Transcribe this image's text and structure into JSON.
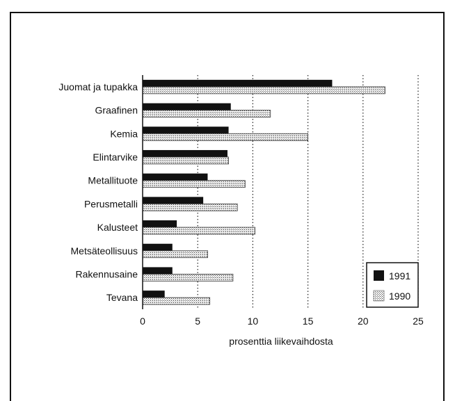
{
  "chart_data": {
    "type": "bar",
    "orientation": "horizontal",
    "categories": [
      "Juomat ja tupakka",
      "Graafinen",
      "Kemia",
      "Elintarvike",
      "Metallituote",
      "Perusmetalli",
      "Kalusteet",
      "Metsäteollisuus",
      "Rakennusaine",
      "Tevana"
    ],
    "series": [
      {
        "name": "1991",
        "values": [
          17.2,
          8.0,
          7.8,
          7.7,
          5.9,
          5.5,
          3.1,
          2.7,
          2.7,
          2.0
        ],
        "color": "#111111",
        "pattern": "solid"
      },
      {
        "name": "1990",
        "values": [
          22.0,
          11.6,
          15.0,
          7.8,
          9.3,
          8.6,
          10.2,
          5.9,
          8.2,
          6.1
        ],
        "color": "#cfcfcf",
        "pattern": "stipple"
      }
    ],
    "title": "",
    "xlabel": "prosenttia liikevaihdosta",
    "ylabel": "",
    "xlim": [
      0,
      25
    ],
    "xticks": [
      "0",
      "5",
      "10",
      "15",
      "20",
      "25"
    ],
    "grid": "vertical dotted",
    "legend_position": "bottom-right"
  }
}
